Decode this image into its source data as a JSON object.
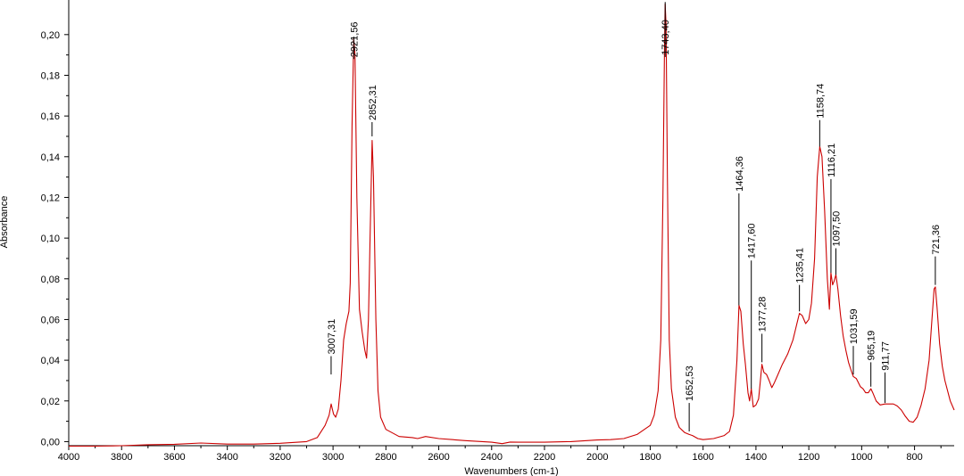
{
  "chart_data": {
    "type": "line",
    "xlabel": "Wavenumbers (cm-1)",
    "ylabel": "Absorbance",
    "xlim": [
      4000,
      650
    ],
    "ylim": [
      -0.002,
      0.217
    ],
    "x_reversed": true,
    "grid": false,
    "line_color": "#cc0000",
    "x_ticks": [
      {
        "value": 4000,
        "label": "4000"
      },
      {
        "value": 3800,
        "label": "3800"
      },
      {
        "value": 3600,
        "label": "3600"
      },
      {
        "value": 3400,
        "label": "3400"
      },
      {
        "value": 3200,
        "label": "3200"
      },
      {
        "value": 3000,
        "label": "3000"
      },
      {
        "value": 2800,
        "label": "2800"
      },
      {
        "value": 2600,
        "label": "2600"
      },
      {
        "value": 2400,
        "label": "2400"
      },
      {
        "value": 2200,
        "label": "2200"
      },
      {
        "value": 2000,
        "label": "2000"
      },
      {
        "value": 1800,
        "label": "1800"
      },
      {
        "value": 1600,
        "label": "1600"
      },
      {
        "value": 1400,
        "label": "1400"
      },
      {
        "value": 1200,
        "label": "1200"
      },
      {
        "value": 1000,
        "label": "1000"
      },
      {
        "value": 800,
        "label": "800"
      }
    ],
    "y_ticks": [
      {
        "value": 0.0,
        "label": "0,00"
      },
      {
        "value": 0.02,
        "label": "0,02"
      },
      {
        "value": 0.04,
        "label": "0,04"
      },
      {
        "value": 0.06,
        "label": "0,06"
      },
      {
        "value": 0.08,
        "label": "0,08"
      },
      {
        "value": 0.1,
        "label": "0,10"
      },
      {
        "value": 0.12,
        "label": "0,12"
      },
      {
        "value": 0.14,
        "label": "0,14"
      },
      {
        "value": 0.16,
        "label": "0,16"
      },
      {
        "value": 0.18,
        "label": "0,18"
      },
      {
        "value": 0.2,
        "label": "0,20"
      }
    ],
    "spectrum": [
      [
        4000,
        -0.0022
      ],
      [
        3900,
        -0.0022
      ],
      [
        3800,
        -0.002
      ],
      [
        3700,
        -0.0015
      ],
      [
        3600,
        -0.0013
      ],
      [
        3500,
        -0.0007
      ],
      [
        3400,
        -0.0012
      ],
      [
        3300,
        -0.0012
      ],
      [
        3200,
        -0.0008
      ],
      [
        3100,
        0.0
      ],
      [
        3060,
        0.002
      ],
      [
        3030,
        0.008
      ],
      [
        3015,
        0.013
      ],
      [
        3007.31,
        0.0185
      ],
      [
        2998,
        0.0135
      ],
      [
        2990,
        0.012
      ],
      [
        2980,
        0.016
      ],
      [
        2970,
        0.03
      ],
      [
        2960,
        0.05
      ],
      [
        2950,
        0.058
      ],
      [
        2940,
        0.064
      ],
      [
        2935,
        0.078
      ],
      [
        2928,
        0.155
      ],
      [
        2921.56,
        0.198
      ],
      [
        2917,
        0.19
      ],
      [
        2910,
        0.12
      ],
      [
        2900,
        0.065
      ],
      [
        2890,
        0.054
      ],
      [
        2880,
        0.045
      ],
      [
        2873,
        0.041
      ],
      [
        2866,
        0.06
      ],
      [
        2860,
        0.1
      ],
      [
        2852.31,
        0.148
      ],
      [
        2847,
        0.13
      ],
      [
        2838,
        0.06
      ],
      [
        2830,
        0.025
      ],
      [
        2820,
        0.012
      ],
      [
        2800,
        0.006
      ],
      [
        2750,
        0.0025
      ],
      [
        2700,
        0.002
      ],
      [
        2680,
        0.0015
      ],
      [
        2650,
        0.0025
      ],
      [
        2600,
        0.0015
      ],
      [
        2500,
        0.0005
      ],
      [
        2400,
        -0.0003
      ],
      [
        2360,
        -0.001
      ],
      [
        2330,
        -0.0002
      ],
      [
        2300,
        -0.0003
      ],
      [
        2200,
        -0.0003
      ],
      [
        2100,
        0.0
      ],
      [
        2000,
        0.0008
      ],
      [
        1950,
        0.001
      ],
      [
        1900,
        0.0015
      ],
      [
        1850,
        0.0035
      ],
      [
        1800,
        0.008
      ],
      [
        1785,
        0.013
      ],
      [
        1770,
        0.025
      ],
      [
        1760,
        0.05
      ],
      [
        1752,
        0.12
      ],
      [
        1746,
        0.195
      ],
      [
        1743.4,
        0.215
      ],
      [
        1740,
        0.205
      ],
      [
        1735,
        0.13
      ],
      [
        1728,
        0.05
      ],
      [
        1720,
        0.026
      ],
      [
        1705,
        0.012
      ],
      [
        1690,
        0.007
      ],
      [
        1670,
        0.0045
      ],
      [
        1652.53,
        0.0035
      ],
      [
        1640,
        0.003
      ],
      [
        1620,
        0.0015
      ],
      [
        1600,
        0.001
      ],
      [
        1560,
        0.0015
      ],
      [
        1520,
        0.003
      ],
      [
        1500,
        0.005
      ],
      [
        1485,
        0.013
      ],
      [
        1472,
        0.04
      ],
      [
        1464.36,
        0.067
      ],
      [
        1457,
        0.064
      ],
      [
        1448,
        0.048
      ],
      [
        1440,
        0.038
      ],
      [
        1430,
        0.024
      ],
      [
        1424,
        0.02
      ],
      [
        1417.6,
        0.026
      ],
      [
        1410,
        0.017
      ],
      [
        1400,
        0.018
      ],
      [
        1390,
        0.021
      ],
      [
        1383,
        0.03
      ],
      [
        1377.28,
        0.038
      ],
      [
        1370,
        0.034
      ],
      [
        1360,
        0.033
      ],
      [
        1350,
        0.03
      ],
      [
        1340,
        0.0265
      ],
      [
        1330,
        0.029
      ],
      [
        1320,
        0.032
      ],
      [
        1300,
        0.038
      ],
      [
        1280,
        0.043
      ],
      [
        1260,
        0.05
      ],
      [
        1245,
        0.058
      ],
      [
        1235.41,
        0.063
      ],
      [
        1225,
        0.062
      ],
      [
        1212,
        0.058
      ],
      [
        1200,
        0.06
      ],
      [
        1190,
        0.068
      ],
      [
        1178,
        0.09
      ],
      [
        1168,
        0.13
      ],
      [
        1158.74,
        0.145
      ],
      [
        1150,
        0.14
      ],
      [
        1140,
        0.113
      ],
      [
        1130,
        0.08
      ],
      [
        1122,
        0.065
      ],
      [
        1116.21,
        0.083
      ],
      [
        1110,
        0.077
      ],
      [
        1104,
        0.079
      ],
      [
        1097.5,
        0.082
      ],
      [
        1090,
        0.075
      ],
      [
        1080,
        0.062
      ],
      [
        1070,
        0.052
      ],
      [
        1060,
        0.045
      ],
      [
        1050,
        0.039
      ],
      [
        1040,
        0.035
      ],
      [
        1031.59,
        0.032
      ],
      [
        1020,
        0.031
      ],
      [
        1005,
        0.027
      ],
      [
        995,
        0.026
      ],
      [
        985,
        0.024
      ],
      [
        975,
        0.024
      ],
      [
        965.19,
        0.026
      ],
      [
        958,
        0.024
      ],
      [
        945,
        0.02
      ],
      [
        930,
        0.018
      ],
      [
        911.77,
        0.0185
      ],
      [
        895,
        0.0185
      ],
      [
        880,
        0.0185
      ],
      [
        865,
        0.0175
      ],
      [
        850,
        0.0155
      ],
      [
        835,
        0.0125
      ],
      [
        820,
        0.01
      ],
      [
        805,
        0.0095
      ],
      [
        790,
        0.012
      ],
      [
        775,
        0.018
      ],
      [
        760,
        0.026
      ],
      [
        745,
        0.04
      ],
      [
        733,
        0.062
      ],
      [
        726,
        0.075
      ],
      [
        721.36,
        0.076
      ],
      [
        715,
        0.066
      ],
      [
        705,
        0.048
      ],
      [
        695,
        0.037
      ],
      [
        685,
        0.03
      ],
      [
        675,
        0.025
      ],
      [
        665,
        0.02
      ],
      [
        650,
        0.0155
      ]
    ],
    "peaks": [
      {
        "x": 3007.31,
        "y": 0.0185,
        "label": "3007,31",
        "tip": 0.033,
        "end": 0.042
      },
      {
        "x": 2921.56,
        "y": 0.198,
        "label": "2921,56",
        "tip": 0.199,
        "end": 0.188
      },
      {
        "x": 2852.31,
        "y": 0.148,
        "label": "2852,31",
        "tip": 0.15,
        "end": 0.157
      },
      {
        "x": 1743.4,
        "y": 0.215,
        "label": "1743,40",
        "tip": 0.216,
        "end": 0.189
      },
      {
        "x": 1652.53,
        "y": 0.0035,
        "label": "1652,53",
        "tip": 0.005,
        "end": 0.019
      },
      {
        "x": 1464.36,
        "y": 0.067,
        "label": "1464,36",
        "tip": 0.067,
        "end": 0.122
      },
      {
        "x": 1417.6,
        "y": 0.026,
        "label": "1417,60",
        "tip": 0.026,
        "end": 0.089
      },
      {
        "x": 1377.28,
        "y": 0.038,
        "label": "1377,28",
        "tip": 0.039,
        "end": 0.053
      },
      {
        "x": 1235.41,
        "y": 0.063,
        "label": "1235,41",
        "tip": 0.064,
        "end": 0.077
      },
      {
        "x": 1158.74,
        "y": 0.145,
        "label": "1158,74",
        "tip": 0.145,
        "end": 0.158
      },
      {
        "x": 1116.21,
        "y": 0.083,
        "label": "1116,21",
        "tip": 0.083,
        "end": 0.129
      },
      {
        "x": 1097.5,
        "y": 0.082,
        "label": "1097,50",
        "tip": 0.082,
        "end": 0.095
      },
      {
        "x": 1031.59,
        "y": 0.032,
        "label": "1031,59",
        "tip": 0.033,
        "end": 0.047
      },
      {
        "x": 965.19,
        "y": 0.026,
        "label": "965,19",
        "tip": 0.027,
        "end": 0.039
      },
      {
        "x": 911.77,
        "y": 0.0185,
        "label": "911,77",
        "tip": 0.019,
        "end": 0.034
      },
      {
        "x": 721.36,
        "y": 0.076,
        "label": "721,36",
        "tip": 0.077,
        "end": 0.091
      }
    ]
  }
}
